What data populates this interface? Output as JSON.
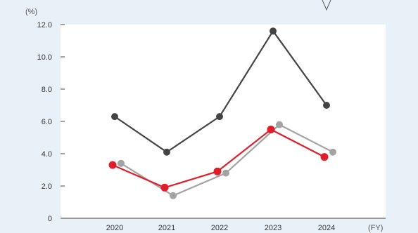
{
  "chart_data": {
    "type": "line",
    "x": [
      "2020",
      "2021",
      "2022",
      "2023",
      "2024"
    ],
    "xlabel": "(FY)",
    "ylabel": "(%)",
    "ylim": [
      0,
      12
    ],
    "yticks": [
      "0",
      "2.0",
      "4.0",
      "6.0",
      "8.0",
      "10.0",
      "12.0"
    ],
    "grid": false,
    "series": [
      {
        "color": "#444444",
        "values": [
          6.3,
          4.1,
          6.3,
          11.6,
          7.0
        ]
      },
      {
        "color": "#a3a3a3",
        "values": [
          3.4,
          1.4,
          2.8,
          5.8,
          4.1
        ]
      },
      {
        "color": "#e01e2b",
        "values": [
          3.3,
          1.9,
          2.9,
          5.5,
          3.8
        ]
      }
    ]
  }
}
